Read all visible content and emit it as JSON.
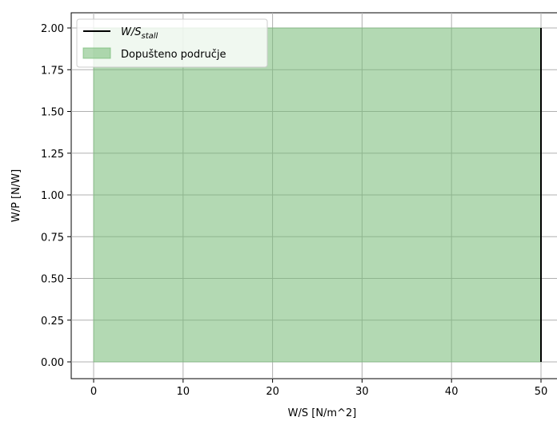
{
  "chart_data": {
    "type": "area",
    "xlabel": "W/S [N/m^2]",
    "ylabel": "W/P [N/W]",
    "xlim": [
      -2.5,
      52.5
    ],
    "ylim": [
      -0.1,
      2.1
    ],
    "xticks": [
      0,
      10,
      20,
      30,
      40,
      50
    ],
    "xtick_labels": [
      "0",
      "10",
      "20",
      "30",
      "40",
      "50"
    ],
    "yticks": [
      0,
      0.25,
      0.5,
      0.75,
      1.0,
      1.25,
      1.5,
      1.75,
      2.0
    ],
    "ytick_labels": [
      "0.00",
      "0.25",
      "0.50",
      "0.75",
      "1.00",
      "1.25",
      "1.50",
      "1.75",
      "2.00"
    ],
    "grid": true,
    "legend_position": "top-left",
    "series": [
      {
        "name": "W/S_stall",
        "legend_main": "W/S",
        "legend_sub": "stall",
        "kind": "line",
        "color": "#000000",
        "x": [
          50,
          50
        ],
        "y": [
          0,
          2
        ]
      },
      {
        "name": "Dopušteno područje",
        "kind": "fill",
        "color": "#74b974",
        "x": [
          0,
          50
        ],
        "y_lower": [
          0,
          0
        ],
        "y_upper": [
          2,
          2
        ]
      }
    ]
  }
}
